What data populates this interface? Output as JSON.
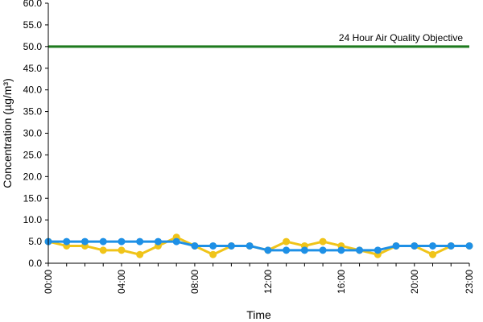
{
  "chart_data": {
    "type": "line",
    "title": "",
    "xlabel": "Time",
    "ylabel": "Concentration (µg/m³)",
    "ylim": [
      0,
      60
    ],
    "y_ticks": [
      "0.0",
      "5.0",
      "10.0",
      "15.0",
      "20.0",
      "25.0",
      "30.0",
      "35.0",
      "40.0",
      "45.0",
      "50.0",
      "55.0",
      "60.0"
    ],
    "x_hours": [
      0,
      1,
      2,
      3,
      4,
      5,
      6,
      7,
      8,
      9,
      10,
      11,
      12,
      13,
      14,
      15,
      16,
      17,
      18,
      19,
      20,
      21,
      22,
      23
    ],
    "x_tick_labels": [
      "00:00",
      "04:00",
      "08:00",
      "12:00",
      "16:00",
      "20:00",
      "23:00"
    ],
    "x_tick_hours": [
      0,
      4,
      8,
      12,
      16,
      20,
      23
    ],
    "grid": false,
    "legend": "none",
    "series": [
      {
        "color": "#f0c419",
        "values": [
          5,
          4,
          4,
          3,
          3,
          2,
          4,
          6,
          4,
          2,
          4,
          4,
          3,
          5,
          4,
          5,
          4,
          3,
          2,
          4,
          4,
          2,
          4,
          4
        ]
      },
      {
        "color": "#1e90e6",
        "values": [
          5,
          5,
          5,
          5,
          5,
          5,
          5,
          5,
          4,
          4,
          4,
          4,
          3,
          3,
          3,
          3,
          3,
          3,
          3,
          4,
          4,
          4,
          4,
          4
        ]
      }
    ],
    "reference_line": {
      "value": 50,
      "label": "24 Hour Air Quality Objective",
      "color": "#1e7a1e"
    }
  }
}
